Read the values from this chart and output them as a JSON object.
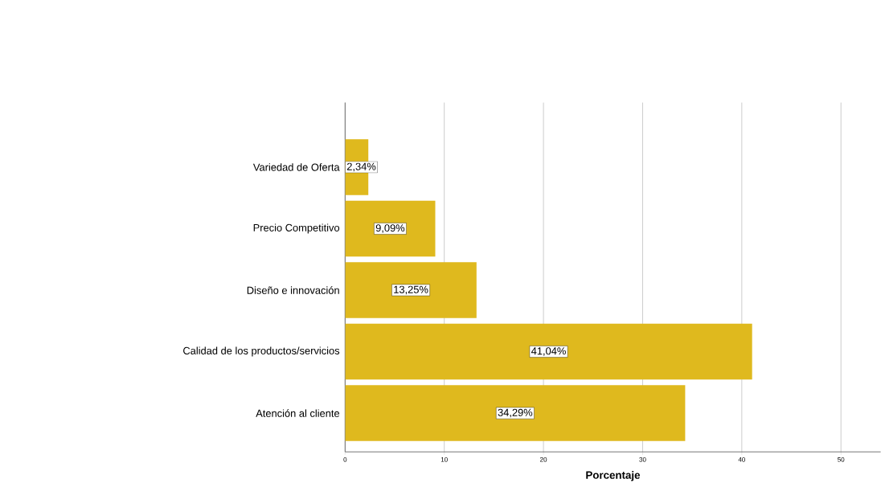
{
  "chart_data": {
    "type": "bar",
    "orientation": "horizontal",
    "xlabel": "Porcentaje",
    "categories": [
      "Variedad de Oferta",
      "Precio Competitivo",
      "Diseño e innovación",
      "Calidad de los productos/servicios",
      "Atención al cliente"
    ],
    "values": [
      2.34,
      9.09,
      13.25,
      41.04,
      34.29
    ],
    "value_labels": [
      "2,34%",
      "9,09%",
      "13,25%",
      "41,04%",
      "34,29%"
    ],
    "color": "#dfb91e",
    "xlim": [
      0,
      54
    ],
    "xticks": [
      0,
      10,
      20,
      30,
      40,
      50
    ],
    "grid": "x"
  }
}
